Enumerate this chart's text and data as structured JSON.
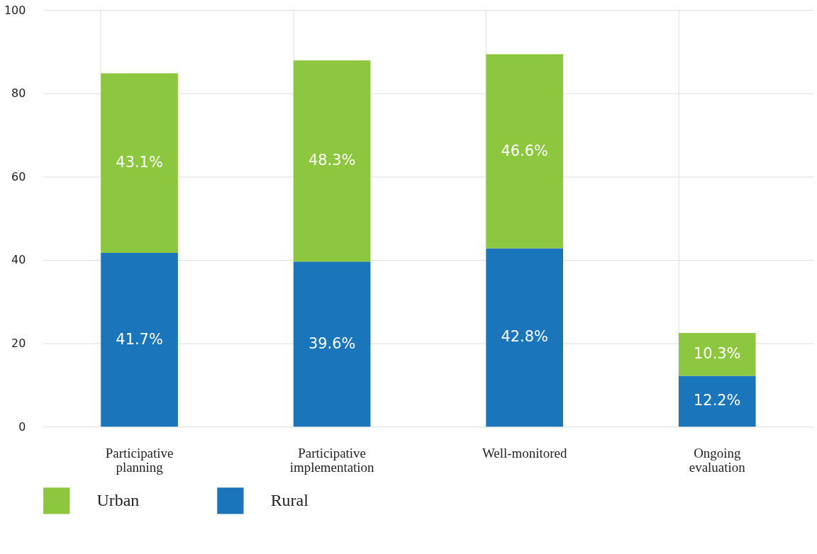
{
  "chart_data": {
    "type": "bar",
    "stacked": true,
    "categories": [
      "Participative planning",
      "Participative implementation",
      "Well-monitored",
      "Ongoing evaluation"
    ],
    "series": [
      {
        "name": "Rural",
        "color": "#1b75bb",
        "values": [
          41.7,
          39.6,
          42.8,
          12.2
        ],
        "value_labels": [
          "41.7%",
          "39.6%",
          "42.8%",
          "12.2%"
        ]
      },
      {
        "name": "Urban",
        "color": "#8dc63f",
        "values": [
          43.1,
          48.3,
          46.6,
          10.3
        ],
        "value_labels": [
          "43.1%",
          "48.3%",
          "46.6%",
          "10.3%"
        ]
      }
    ],
    "ylim": [
      0,
      100
    ],
    "yticks": [
      0,
      20,
      40,
      60,
      80,
      100
    ],
    "grid": true,
    "legend": "bottom"
  }
}
